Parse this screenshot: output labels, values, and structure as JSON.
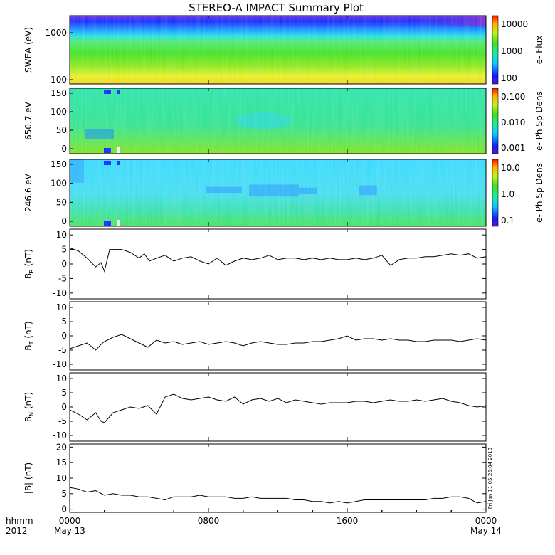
{
  "chart_data": {
    "title": "STEREO-A IMPACT Summary Plot",
    "footer_left": [
      "hhmm",
      "2012"
    ],
    "x_ticks": [
      {
        "label": "0000",
        "sub": "May 13",
        "hour": 0
      },
      {
        "label": "0800",
        "sub": "",
        "hour": 8
      },
      {
        "label": "1600",
        "sub": "",
        "hour": 16
      },
      {
        "label": "0000",
        "sub": "May 14",
        "hour": 24
      }
    ],
    "side_stamp": "Fri Jan 11 05:26:04 2013",
    "spectrograms": [
      {
        "type": "heatmap",
        "ylabel": "SWEA (eV)",
        "yscale": "log",
        "yticks": [
          "1000",
          "100"
        ],
        "colorbar_label": "e- Flux",
        "colorbar_ticks": [
          "10000",
          "1000",
          "100"
        ]
      },
      {
        "type": "heatmap",
        "ylabel": "650.7 eV",
        "yticks": [
          "150",
          "100",
          "50",
          "0"
        ],
        "colorbar_label": "e- Ph Sp Dens",
        "colorbar_ticks": [
          "0.100",
          "0.010",
          "0.001"
        ]
      },
      {
        "type": "heatmap",
        "ylabel": "246.6 eV",
        "yticks": [
          "150",
          "100",
          "50",
          "0"
        ],
        "colorbar_label": "e- Ph Sp Dens",
        "colorbar_ticks": [
          "10.0",
          "1.0",
          "0.1"
        ]
      }
    ],
    "lines": [
      {
        "type": "line",
        "ylabel_main": "B",
        "ylabel_sub": "R",
        "ylabel_unit": " (nT)",
        "ylim": [
          -12,
          12
        ],
        "yticks": [
          10,
          5,
          0,
          -5,
          -10
        ],
        "x": [
          0,
          0.5,
          1,
          1.5,
          1.8,
          2,
          2.3,
          2.6,
          3,
          3.5,
          4,
          4.3,
          4.6,
          5,
          5.5,
          6,
          6.5,
          7,
          7.5,
          8,
          8.5,
          9,
          9.5,
          10,
          10.5,
          11,
          11.5,
          12,
          12.5,
          13,
          13.5,
          14,
          14.5,
          15,
          15.5,
          16,
          16.5,
          17,
          17.5,
          18,
          18.5,
          19,
          19.5,
          20,
          20.5,
          21,
          21.5,
          22,
          22.5,
          23,
          23.5,
          24
        ],
        "y": [
          5.5,
          4.5,
          2,
          -1,
          0.5,
          -2.5,
          5,
          5,
          5,
          4,
          2,
          3.5,
          1,
          2,
          3,
          1,
          2,
          2.5,
          1,
          0,
          2,
          -0.5,
          1,
          2,
          1.5,
          2,
          3,
          1.5,
          2,
          2,
          1.5,
          2,
          1.5,
          2,
          1.5,
          1.5,
          2,
          1.5,
          2,
          3,
          -0.5,
          1.5,
          2,
          2,
          2.5,
          2.5,
          3,
          3.5,
          3,
          3.5,
          2,
          2.5
        ]
      },
      {
        "type": "line",
        "ylabel_main": "B",
        "ylabel_sub": "T",
        "ylabel_unit": " (nT)",
        "ylim": [
          -12,
          12
        ],
        "yticks": [
          10,
          5,
          0,
          -5,
          -10
        ],
        "x": [
          0,
          0.5,
          1,
          1.5,
          1.8,
          2,
          2.5,
          3,
          3.5,
          4,
          4.5,
          5,
          5.5,
          6,
          6.5,
          7,
          7.5,
          8,
          8.5,
          9,
          9.5,
          10,
          10.5,
          11,
          11.5,
          12,
          12.5,
          13,
          13.5,
          14,
          14.5,
          15,
          15.5,
          16,
          16.5,
          17,
          17.5,
          18,
          18.5,
          19,
          19.5,
          20,
          20.5,
          21,
          21.5,
          22,
          22.5,
          23,
          23.5,
          24
        ],
        "y": [
          -4.5,
          -3.5,
          -2.5,
          -5,
          -3,
          -2,
          -0.5,
          0.5,
          -1,
          -2.5,
          -4,
          -1.5,
          -2.5,
          -2,
          -3,
          -2.5,
          -2,
          -3,
          -2.5,
          -2,
          -2.5,
          -3.5,
          -2.5,
          -2,
          -2.5,
          -3,
          -3,
          -2.5,
          -2.5,
          -2,
          -2,
          -1.5,
          -1,
          0,
          -1.5,
          -1,
          -1,
          -1.5,
          -1,
          -1.5,
          -1.5,
          -2,
          -2,
          -1.5,
          -1.5,
          -1.5,
          -2,
          -1.5,
          -1,
          -1.5
        ]
      },
      {
        "type": "line",
        "ylabel_main": "B",
        "ylabel_sub": "N",
        "ylabel_unit": " (nT)",
        "ylim": [
          -12,
          12
        ],
        "yticks": [
          10,
          5,
          0,
          -5,
          -10
        ],
        "x": [
          0,
          0.5,
          1,
          1.5,
          1.8,
          2,
          2.5,
          3,
          3.5,
          4,
          4.5,
          5,
          5.5,
          6,
          6.5,
          7,
          7.5,
          8,
          8.5,
          9,
          9.5,
          10,
          10.5,
          11,
          11.5,
          12,
          12.5,
          13,
          13.5,
          14,
          14.5,
          15,
          15.5,
          16,
          16.5,
          17,
          17.5,
          18,
          18.5,
          19,
          19.5,
          20,
          20.5,
          21,
          21.5,
          22,
          22.5,
          23,
          23.5,
          24
        ],
        "y": [
          -1,
          -2.5,
          -4.5,
          -2,
          -5,
          -5.5,
          -2,
          -1,
          0,
          -0.5,
          0.5,
          -2.5,
          3.5,
          4.5,
          3,
          2.5,
          3,
          3.5,
          2.5,
          2,
          3.5,
          1,
          2.5,
          3,
          2,
          3,
          1.5,
          2.5,
          2,
          1.5,
          1,
          1.5,
          1.5,
          1.5,
          2,
          2,
          1.5,
          2,
          2.5,
          2,
          2,
          2.5,
          2,
          2.5,
          3,
          2,
          1.5,
          0.5,
          0,
          0.5
        ]
      },
      {
        "type": "line",
        "ylabel_main": "|B|",
        "ylabel_sub": "",
        "ylabel_unit": " (nT)",
        "ylim": [
          -1,
          21
        ],
        "yticks": [
          20,
          15,
          10,
          5,
          0
        ],
        "x": [
          0,
          0.5,
          1,
          1.5,
          2,
          2.5,
          3,
          3.5,
          4,
          4.5,
          5,
          5.5,
          6,
          6.5,
          7,
          7.5,
          8,
          8.5,
          9,
          9.5,
          10,
          10.5,
          11,
          11.5,
          12,
          12.5,
          13,
          13.5,
          14,
          14.5,
          15,
          15.5,
          16,
          16.5,
          17,
          17.5,
          18,
          18.5,
          19,
          19.5,
          20,
          20.5,
          21,
          21.5,
          22,
          22.5,
          23,
          23.5,
          24
        ],
        "y": [
          7,
          6.5,
          5.5,
          6,
          4.5,
          5,
          4.5,
          4.5,
          4,
          4,
          3.5,
          3,
          4,
          4,
          4,
          4.5,
          4,
          4,
          4,
          3.5,
          3.5,
          4,
          3.5,
          3.5,
          3.5,
          3.5,
          3,
          3,
          2.5,
          2.5,
          2,
          2.5,
          2,
          2.5,
          3,
          3,
          3,
          3,
          3,
          3,
          3,
          3,
          3.5,
          3.5,
          4,
          4,
          3.5,
          2,
          2.5
        ]
      }
    ]
  }
}
